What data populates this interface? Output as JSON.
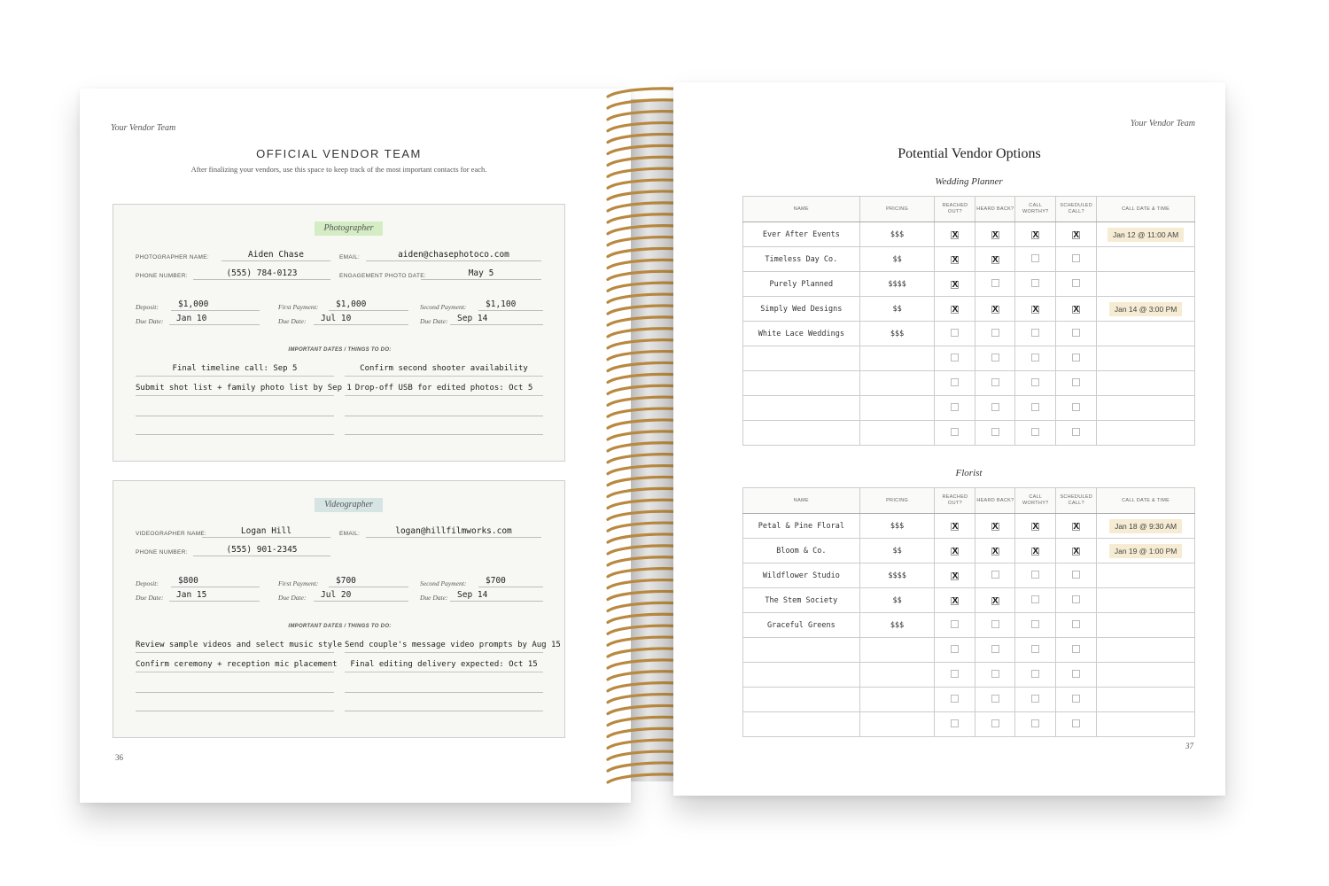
{
  "left_page": {
    "running_head": "Your Vendor Team",
    "title": "OFFICIAL VENDOR TEAM",
    "subtitle": "After finalizing your vendors, use this space to keep track of the most important contacts for each.",
    "page_number": "36",
    "cards": [
      {
        "tag": "Photographer",
        "tag_color": "#d4edc4",
        "name_label": "PHOTOGRAPHER NAME:",
        "name": "Aiden Chase",
        "email_label": "EMAIL:",
        "email": "aiden@chasephotoco.com",
        "phone_label": "PHONE NUMBER:",
        "phone": "(555) 784-0123",
        "extra_label": "ENGAGEMENT PHOTO DATE:",
        "extra": "May 5",
        "deposit_label": "Deposit:",
        "deposit": "$1,000",
        "first_label": "First Payment:",
        "first": "$1,000",
        "second_label": "Second Payment:",
        "second": "$1,100",
        "due_label": "Due Date:",
        "due1": "Jan 10",
        "due2": "Jul 10",
        "due3": "Sep 14",
        "todo_label": "IMPORTANT DATES / THINGS TO DO:",
        "todos": [
          "Final timeline call: Sep 5",
          "Confirm second shooter availability",
          "Submit shot list + family photo list by Sep 1",
          "Drop-off USB for edited photos: Oct 5"
        ]
      },
      {
        "tag": "Videographer",
        "tag_color": "#d6e4e4",
        "name_label": "VIDEOGRAPHER NAME:",
        "name": "Logan Hill",
        "email_label": "EMAIL:",
        "email": "logan@hillfilmworks.com",
        "phone_label": "PHONE NUMBER:",
        "phone": "(555) 901-2345",
        "deposit_label": "Deposit:",
        "deposit": "$800",
        "first_label": "First Payment:",
        "first": "$700",
        "second_label": "Second Payment:",
        "second": "$700",
        "due_label": "Due Date:",
        "due1": "Jan 15",
        "due2": "Jul 20",
        "due3": "Sep 14",
        "todo_label": "IMPORTANT DATES / THINGS TO DO:",
        "todos": [
          "Review sample videos and select music style",
          "Send couple's message video prompts by Aug 15",
          "Confirm ceremony + reception mic placement",
          "Final editing delivery expected: Oct 15"
        ]
      }
    ]
  },
  "right_page": {
    "running_head": "Your Vendor Team",
    "title": "Potential Vendor Options",
    "page_number": "37",
    "columns": [
      "NAME",
      "PRICING",
      "REACHED OUT?",
      "HEARD BACK?",
      "CALL WORTHY?",
      "SCHEDULED CALL?",
      "CALL DATE & TIME"
    ],
    "highlight_color": "#f6ecd4",
    "tables": [
      {
        "caption": "Wedding Planner",
        "rows": [
          {
            "name": "Ever After Events",
            "pricing": "$$$",
            "checks": [
              true,
              true,
              true,
              true
            ],
            "date": "Jan 12 @ 11:00 AM"
          },
          {
            "name": "Timeless Day Co.",
            "pricing": "$$",
            "checks": [
              true,
              true,
              false,
              false
            ],
            "date": ""
          },
          {
            "name": "Purely Planned",
            "pricing": "$$$$",
            "checks": [
              true,
              false,
              false,
              false
            ],
            "date": ""
          },
          {
            "name": "Simply Wed Designs",
            "pricing": "$$",
            "checks": [
              true,
              true,
              true,
              true
            ],
            "date": "Jan 14 @ 3:00 PM"
          },
          {
            "name": "White Lace Weddings",
            "pricing": "$$$",
            "checks": [
              false,
              false,
              false,
              false
            ],
            "date": ""
          },
          {
            "name": "",
            "pricing": "",
            "checks": [
              false,
              false,
              false,
              false
            ],
            "date": ""
          },
          {
            "name": "",
            "pricing": "",
            "checks": [
              false,
              false,
              false,
              false
            ],
            "date": ""
          },
          {
            "name": "",
            "pricing": "",
            "checks": [
              false,
              false,
              false,
              false
            ],
            "date": ""
          },
          {
            "name": "",
            "pricing": "",
            "checks": [
              false,
              false,
              false,
              false
            ],
            "date": ""
          }
        ]
      },
      {
        "caption": "Florist",
        "rows": [
          {
            "name": "Petal & Pine Floral",
            "pricing": "$$$",
            "checks": [
              true,
              true,
              true,
              true
            ],
            "date": "Jan 18 @ 9:30 AM"
          },
          {
            "name": "Bloom & Co.",
            "pricing": "$$",
            "checks": [
              true,
              true,
              true,
              true
            ],
            "date": "Jan 19 @ 1:00 PM"
          },
          {
            "name": "Wildflower Studio",
            "pricing": "$$$$",
            "checks": [
              true,
              false,
              false,
              false
            ],
            "date": ""
          },
          {
            "name": "The Stem Society",
            "pricing": "$$",
            "checks": [
              true,
              true,
              false,
              false
            ],
            "date": ""
          },
          {
            "name": "Graceful Greens",
            "pricing": "$$$",
            "checks": [
              false,
              false,
              false,
              false
            ],
            "date": ""
          },
          {
            "name": "",
            "pricing": "",
            "checks": [
              false,
              false,
              false,
              false
            ],
            "date": ""
          },
          {
            "name": "",
            "pricing": "",
            "checks": [
              false,
              false,
              false,
              false
            ],
            "date": ""
          },
          {
            "name": "",
            "pricing": "",
            "checks": [
              false,
              false,
              false,
              false
            ],
            "date": ""
          },
          {
            "name": "",
            "pricing": "",
            "checks": [
              false,
              false,
              false,
              false
            ],
            "date": ""
          }
        ]
      }
    ]
  },
  "spiral_color": "#b8893f"
}
